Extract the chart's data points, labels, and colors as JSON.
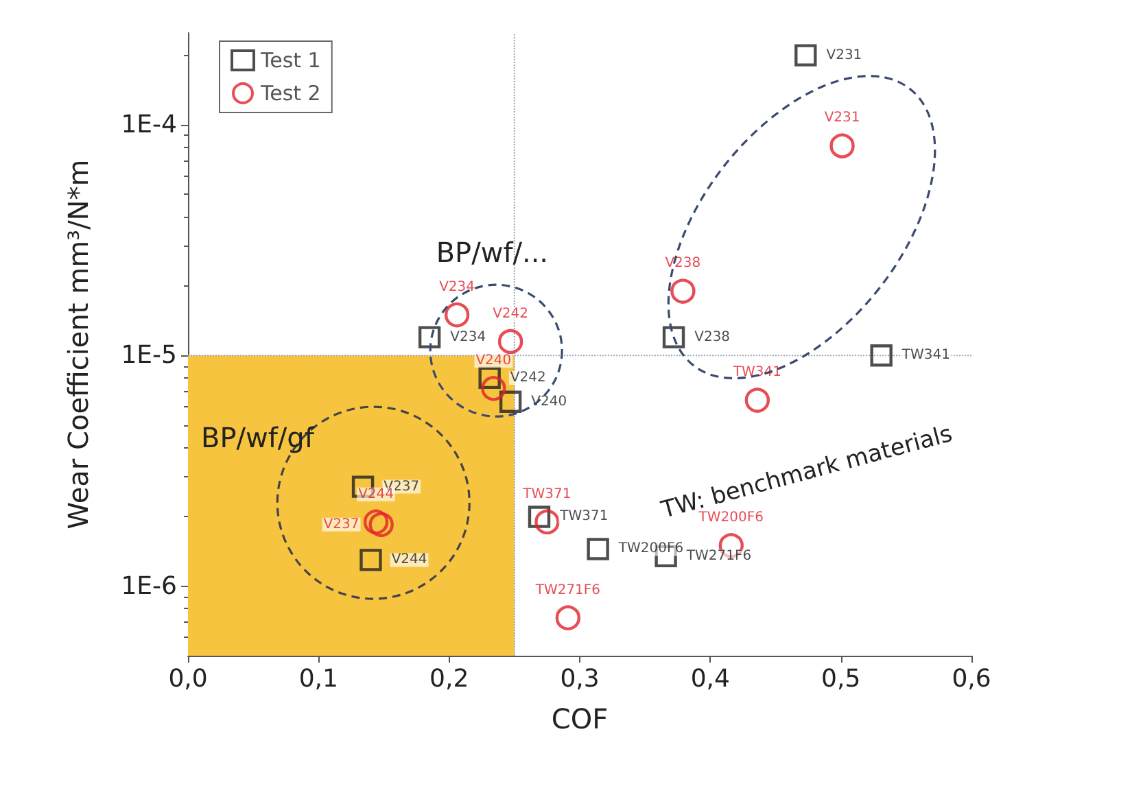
{
  "chart_data": {
    "type": "scatter",
    "xlabel": "COF",
    "ylabel": "Wear Coefficient mm³/N*m",
    "xlim": [
      0,
      0.6
    ],
    "xticks": [
      {
        "value": 0,
        "label": "0,0"
      },
      {
        "value": 0.1,
        "label": "0,1"
      },
      {
        "value": 0.2,
        "label": "0,2"
      },
      {
        "value": 0.3,
        "label": "0,3"
      },
      {
        "value": 0.4,
        "label": "0,4"
      },
      {
        "value": 0.5,
        "label": "0,5"
      },
      {
        "value": 0.6,
        "label": "0,6"
      }
    ],
    "ylim": [
      5e-07,
      0.00025
    ],
    "yticks": [
      {
        "value": 1e-06,
        "label": "1E-6"
      },
      {
        "value": 1e-05,
        "label": "1E-5"
      },
      {
        "value": 0.0001,
        "label": "1E-4"
      }
    ],
    "log": "y",
    "grid": false,
    "legend": "top left",
    "series": [
      {
        "name": "Test 1",
        "color": "#222222",
        "marker": "square",
        "x": [
          0.473,
          0.185,
          0.372,
          0.531,
          0.231,
          0.247,
          0.134,
          0.14,
          0.269,
          0.314,
          0.366
        ],
        "values": [
          0.0002,
          1.2e-05,
          1.2e-05,
          1e-05,
          8e-06,
          6.3e-06,
          2.7e-06,
          1.3e-06,
          2e-06,
          1.45e-06,
          1.35e-06
        ],
        "value_labels": [
          "V231",
          "V234",
          "V238",
          "TW341",
          "V242",
          "V240",
          "V237",
          "V244",
          "TW371",
          "TW200F6",
          "TW271F6"
        ]
      },
      {
        "name": "Test 2",
        "color": "#e0202a",
        "marker": "circle",
        "x": [
          0.501,
          0.206,
          0.379,
          0.247,
          0.436,
          0.234,
          0.144,
          0.148,
          0.275,
          0.416,
          0.291
        ],
        "values": [
          8.1e-05,
          1.5e-05,
          1.9e-05,
          1.15e-05,
          6.4e-06,
          7.2e-06,
          1.9e-06,
          1.85e-06,
          1.9e-06,
          1.5e-06,
          7.3e-07
        ],
        "value_labels": [
          "V231",
          "V234",
          "V238",
          "V242",
          "TW341",
          "V240",
          "V244",
          "V237",
          "TW371",
          "TW200F6",
          "TW271F6"
        ]
      }
    ],
    "ref_lines": [
      {
        "axis": "x",
        "value": 0.25,
        "color": "#9aa4b8",
        "line_style": "dotted"
      },
      {
        "axis": "y",
        "value": 1e-05,
        "color": "#9aa4b8",
        "line_style": "dotted"
      }
    ],
    "bands": [
      {
        "axis": "x",
        "from": 0,
        "to": 0.25,
        "color": "#f7c440"
      }
    ],
    "annotations": [
      "BP/wf/...",
      "BP/wf/gf",
      "TW: benchmark materials"
    ]
  }
}
